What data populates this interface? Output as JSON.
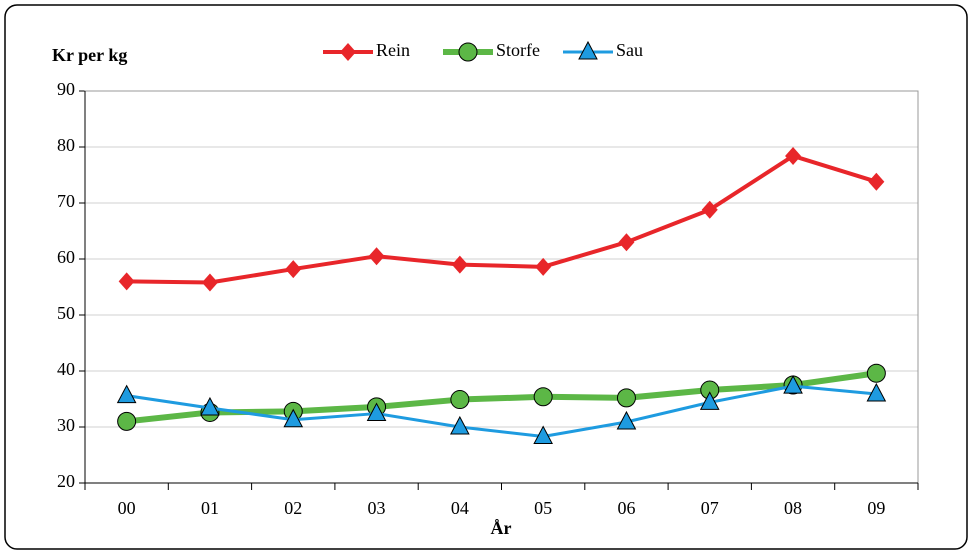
{
  "chart_data": {
    "type": "line",
    "title": "Kr per kg",
    "x_label": "År",
    "categories": [
      "00",
      "01",
      "02",
      "03",
      "04",
      "05",
      "06",
      "07",
      "08",
      "09"
    ],
    "series": [
      {
        "name": "Rein",
        "color": "#e8262a",
        "marker": "diamond",
        "values": [
          56,
          55.8,
          58.2,
          60.5,
          59,
          58.6,
          63,
          68.8,
          78.4,
          73.8
        ]
      },
      {
        "name": "Storfe",
        "color": "#5cb746",
        "marker": "circle",
        "values": [
          31,
          32.6,
          32.8,
          33.6,
          34.9,
          35.4,
          35.2,
          36.6,
          37.5,
          39.6
        ]
      },
      {
        "name": "Sau",
        "color": "#1e9be0",
        "marker": "triangle",
        "values": [
          35.6,
          33.4,
          31.3,
          32.4,
          30,
          28.3,
          30.9,
          34.4,
          37.3,
          35.9
        ]
      }
    ],
    "ylim": [
      20,
      90
    ],
    "yticks": [
      20,
      30,
      40,
      50,
      60,
      70,
      80,
      90
    ],
    "grid": true,
    "legend": "top"
  }
}
